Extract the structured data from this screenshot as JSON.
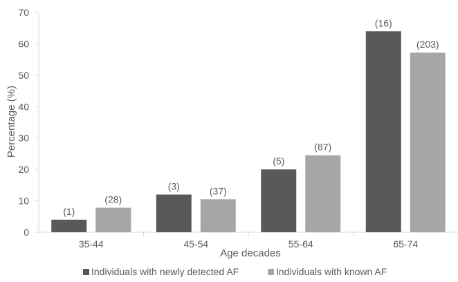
{
  "chart_data": {
    "type": "bar",
    "title": "",
    "xlabel": "Age decades",
    "ylabel": "Percentage (%)",
    "categories": [
      "35-44",
      "45-54",
      "55-64",
      "65-74"
    ],
    "ylim": [
      0,
      70
    ],
    "yticks": [
      0,
      10,
      20,
      30,
      40,
      50,
      60,
      70
    ],
    "grid": false,
    "legend_position": "bottom",
    "series": [
      {
        "name": "Individuals with newly detected AF",
        "color": "#595959",
        "values": [
          4,
          12,
          20,
          64
        ],
        "labels": [
          "(1)",
          "(3)",
          "(5)",
          "(16)"
        ]
      },
      {
        "name": "Individuals with known AF",
        "color": "#a6a6a6",
        "values": [
          7.8,
          10.5,
          24.5,
          57.2
        ],
        "labels": [
          "(28)",
          "(37)",
          "(87)",
          "(203)"
        ]
      }
    ]
  }
}
